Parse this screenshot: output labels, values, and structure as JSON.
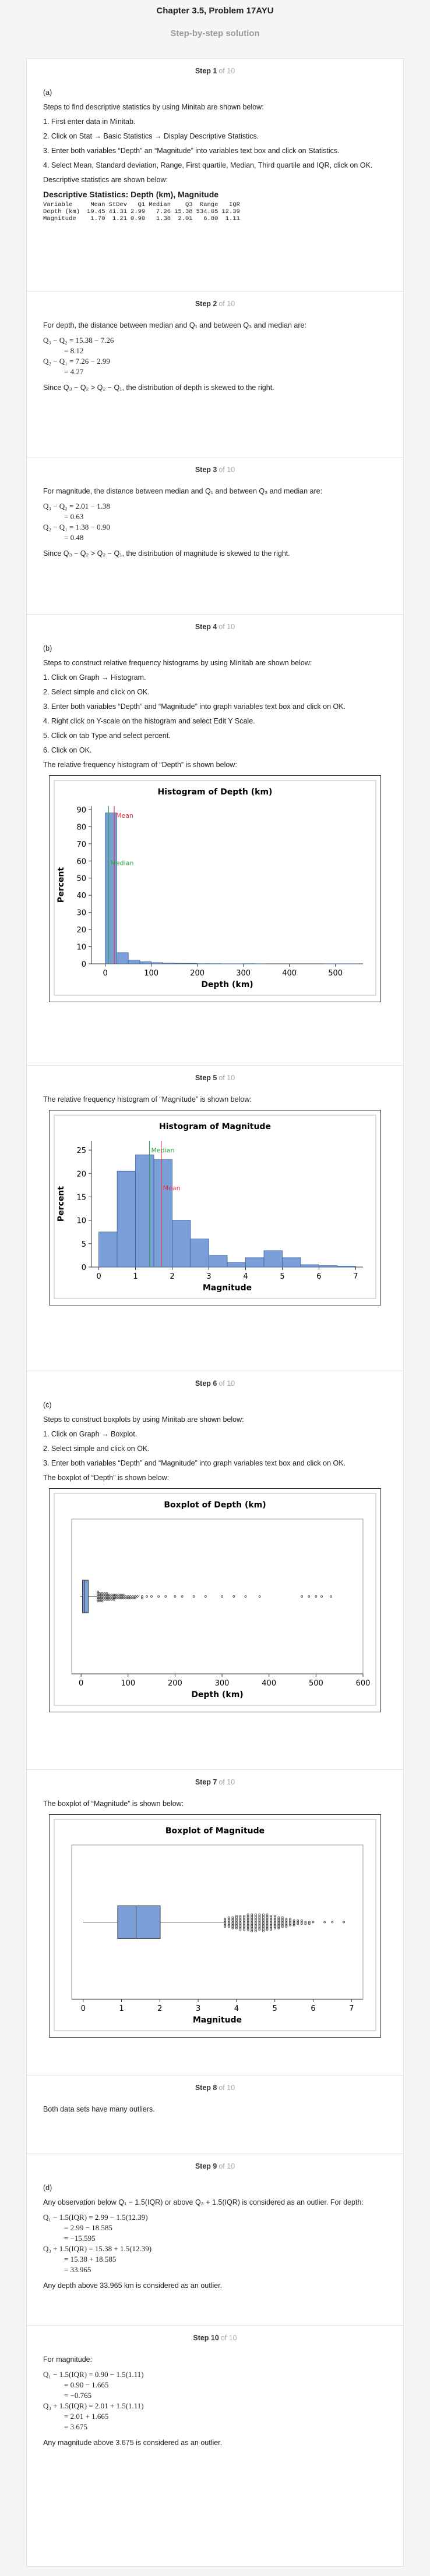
{
  "header": {
    "title": "Chapter 3.5, Problem 17AYU",
    "subtitle": "Step-by-step solution"
  },
  "steps": [
    {
      "step": "Step 1",
      "of": "of 10",
      "paragraphs": [
        "(a)",
        "Steps to find descriptive statistics by using Minitab are shown below:",
        "1. First enter data in Minitab.",
        "2. Click on Stat → Basic Statistics → Display Descriptive Statistics.",
        "3. Enter both variables “Depth” an “Magnitude” into variables text box and click on Statistics.",
        "4. Select Mean, Standard deviation, Range, First quartile, Median, Third quartile and IQR, click on OK.",
        "Descriptive statistics are shown below:"
      ],
      "table": {
        "title": "Descriptive Statistics: Depth (km), Magnitude",
        "header": [
          "Variable",
          "Mean",
          "StDev",
          "Q1",
          "Median",
          "Q3",
          "Range",
          "IQR"
        ],
        "rows": [
          [
            "Depth (km)",
            "19.45",
            "41.31",
            "2.99",
            "7.26",
            "15.38",
            "534.05",
            "12.39"
          ],
          [
            "Magnitude",
            "1.70",
            "1.21",
            "0.90",
            "1.38",
            "2.01",
            "6.80",
            "1.11"
          ]
        ]
      }
    },
    {
      "step": "Step 2",
      "of": "of 10",
      "paragraphs": [
        "For depth, the distance between median and Q₁ and between Q₃ and median are:"
      ],
      "equations": [
        "Q₃ − Q₂ = 15.38 − 7.26",
        "= 8.12",
        "Q₂ − Q₁ = 7.26 − 2.99",
        "= 4.27"
      ],
      "after": [
        "Since Q₃ − Q₂ > Q₂ − Q₁, the distribution of depth is skewed to the right."
      ]
    },
    {
      "step": "Step 3",
      "of": "of 10",
      "paragraphs": [
        "For magnitude, the distance between median and Q₁ and between Q₃ and median are:"
      ],
      "equations": [
        "Q₃ − Q₂ = 2.01 − 1.38",
        "= 0.63",
        "Q₂ − Q₁ = 1.38 − 0.90",
        "= 0.48"
      ],
      "after": [
        "Since Q₃ − Q₂ > Q₂ − Q₁, the distribution of magnitude is skewed to the right."
      ]
    },
    {
      "step": "Step 4",
      "of": "of 10",
      "paragraphs": [
        "(b)",
        "Steps to construct relative frequency histograms by using Minitab are shown below:",
        "1. Click on Graph → Histogram.",
        "2. Select simple and click on OK.",
        "3. Enter both variables “Depth” and “Magnitude” into graph variables text box and click on OK.",
        "4. Right click on Y-scale on the histogram and select Edit Y Scale.",
        "5. Click on tab Type and select percent.",
        "6. Click on OK.",
        "The relative frequency histogram of “Depth” is shown below:"
      ]
    },
    {
      "step": "Step 5",
      "of": "of 10",
      "paragraphs": [
        "The relative frequency histogram of “Magnitude” is shown below:"
      ]
    },
    {
      "step": "Step 6",
      "of": "of 10",
      "paragraphs": [
        "(c)",
        "Steps to construct boxplots by using Minitab are shown below:",
        "1. Click on Graph → Boxplot.",
        "2. Select simple and click on OK.",
        "3. Enter both variables “Depth” and “Magnitude” into graph variables text box and click on OK.",
        "The boxplot of “Depth” is shown below:"
      ]
    },
    {
      "step": "Step 7",
      "of": "of 10",
      "paragraphs": [
        "The boxplot of “Magnitude” is shown below:"
      ]
    },
    {
      "step": "Step 8",
      "of": "of 10",
      "paragraphs": [
        "Both data sets have many outliers."
      ]
    },
    {
      "step": "Step 9",
      "of": "of 10",
      "paragraphs": [
        "(d)",
        "Any observation below Q₁ − 1.5(IQR) or above Q₃ + 1.5(IQR) is considered as an outlier. For depth:"
      ],
      "equations": [
        "Q₁ − 1.5(IQR) = 2.99 − 1.5(12.39)",
        "= 2.99 − 18.585",
        "= −15.595",
        "Q₃ + 1.5(IQR) = 15.38 + 1.5(12.39)",
        "= 15.38 + 18.585",
        "= 33.965"
      ],
      "after": [
        "Any depth above 33.965 km is considered as an outlier."
      ]
    },
    {
      "step": "Step 10",
      "of": "of 10",
      "paragraphs": [
        "For magnitude:"
      ],
      "equations": [
        "Q₁ − 1.5(IQR) = 0.90 − 1.5(1.11)",
        "= 0.90 − 1.665",
        "= −0.765",
        "Q₃ + 1.5(IQR) = 2.01 + 1.5(1.11)",
        "= 2.01 + 1.665",
        "= 3.675"
      ],
      "after": [
        "Any magnitude above 3.675 is considered as an outlier."
      ]
    }
  ],
  "chart_data": [
    {
      "type": "histogram",
      "title": "Histogram of Depth (km)",
      "xlabel": "Depth (km)",
      "ylabel": "Percent",
      "color": "#7b9fd8",
      "bins": [
        0,
        25,
        50,
        75,
        100,
        125,
        150,
        175,
        200,
        225,
        250,
        275,
        300,
        325,
        350,
        375,
        400,
        425,
        450,
        475,
        500,
        525,
        550
      ],
      "values": [
        88,
        6.5,
        2.2,
        1.2,
        0.7,
        0.4,
        0.3,
        0.2,
        0.1,
        0.1,
        0.05,
        0.05,
        0.1,
        0.05,
        0,
        0,
        0,
        0,
        0,
        0.05,
        0.05,
        0.05
      ],
      "xlim": [
        -30,
        560
      ],
      "ylim": [
        0,
        92
      ],
      "xticks": [
        0,
        100,
        200,
        300,
        400,
        500
      ],
      "yticks": [
        0,
        10,
        20,
        30,
        40,
        50,
        60,
        70,
        80,
        90
      ],
      "reference_lines": [
        {
          "label": "Mean",
          "value": 19.45,
          "color": "#e0303a"
        },
        {
          "label": "Median",
          "value": 7.26,
          "color": "#2fa64a"
        }
      ]
    },
    {
      "type": "histogram",
      "title": "Histogram of Magnitude",
      "xlabel": "Magnitude",
      "ylabel": "Percent",
      "color": "#7b9fd8",
      "bins": [
        0,
        0.5,
        1,
        1.5,
        2,
        2.5,
        3,
        3.5,
        4,
        4.5,
        5,
        5.5,
        6,
        6.5,
        7
      ],
      "values": [
        7.5,
        20.5,
        24,
        23,
        10,
        6,
        2.5,
        1,
        2,
        3.5,
        2,
        0.5,
        0.3,
        0.2
      ],
      "xlim": [
        -0.2,
        7.2
      ],
      "ylim": [
        0,
        27
      ],
      "xticks": [
        0,
        1,
        2,
        3,
        4,
        5,
        6,
        7
      ],
      "yticks": [
        0,
        5,
        10,
        15,
        20,
        25
      ],
      "reference_lines": [
        {
          "label": "Median",
          "value": 1.38,
          "color": "#2fa64a"
        },
        {
          "label": "Mean",
          "value": 1.7,
          "color": "#e0303a"
        }
      ]
    },
    {
      "type": "boxplot",
      "title": "Boxplot of Depth (km)",
      "xlabel": "Depth (km)",
      "color": "#7b9fd8",
      "whisker_low": -2,
      "q1": 2.99,
      "median": 7.26,
      "q3": 15.38,
      "whisker_high": 33.9,
      "outliers": {
        "values": [
          36,
          40,
          45,
          50,
          55,
          60,
          65,
          70,
          75,
          80,
          85,
          90,
          95,
          100,
          105,
          110,
          115,
          120,
          130,
          140,
          150,
          165,
          180,
          200,
          215,
          240,
          265,
          300,
          325,
          350,
          380,
          470,
          485,
          500,
          512,
          532
        ],
        "counts": [
          7,
          6,
          6,
          5,
          5,
          4,
          4,
          4,
          3,
          3,
          3,
          3,
          2,
          2,
          2,
          2,
          2,
          1,
          2,
          1,
          1,
          1,
          1,
          1,
          1,
          1,
          1,
          1,
          1,
          1,
          1,
          1,
          1,
          1,
          1,
          1
        ]
      },
      "xlim": [
        -20,
        600
      ],
      "xticks": [
        0,
        100,
        200,
        300,
        400,
        500,
        600
      ]
    },
    {
      "type": "boxplot",
      "title": "Boxplot of Magnitude",
      "xlabel": "Magnitude",
      "color": "#7b9fd8",
      "whisker_low": 0,
      "q1": 0.9,
      "median": 1.38,
      "q3": 2.01,
      "whisker_high": 3.67,
      "outliers": {
        "values": [
          3.7,
          3.8,
          3.9,
          4,
          4.1,
          4.2,
          4.3,
          4.4,
          4.5,
          4.6,
          4.7,
          4.8,
          4.9,
          5,
          5.1,
          5.2,
          5.3,
          5.4,
          5.5,
          5.6,
          5.7,
          5.8,
          5.9,
          6,
          6.3,
          6.5,
          6.8
        ],
        "counts": [
          6,
          7,
          8,
          9,
          10,
          10,
          11,
          12,
          12,
          11,
          12,
          11,
          10,
          9,
          8,
          7,
          6,
          5,
          4,
          3,
          3,
          2,
          2,
          1,
          1,
          1,
          1
        ]
      },
      "xlim": [
        -0.3,
        7.3
      ],
      "xticks": [
        0,
        1,
        2,
        3,
        4,
        5,
        6,
        7
      ]
    }
  ]
}
